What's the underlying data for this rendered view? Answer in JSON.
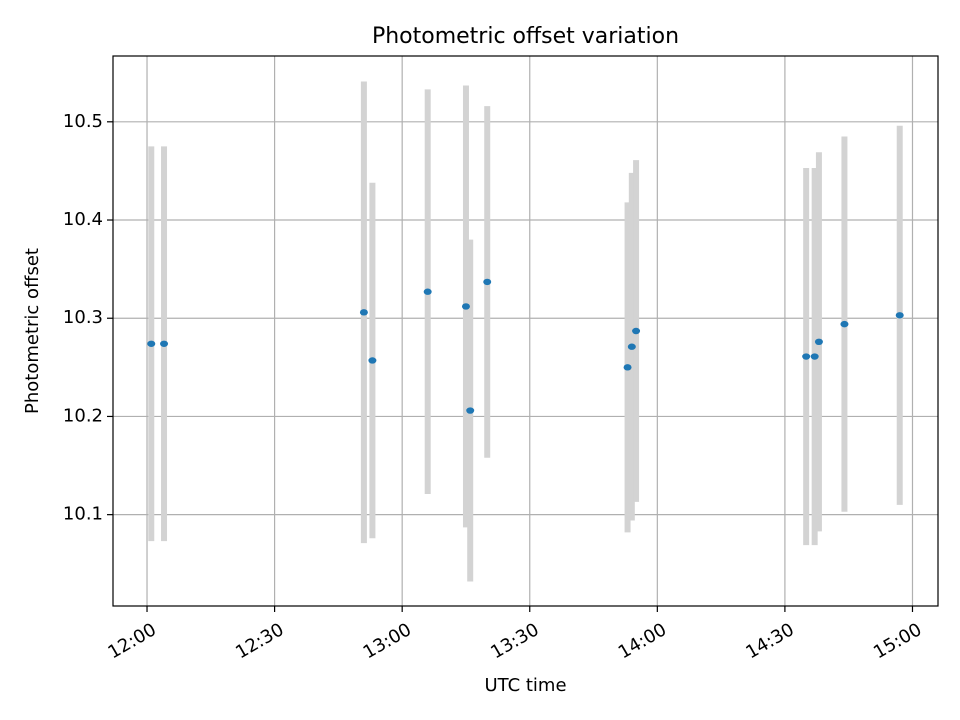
{
  "chart_data": {
    "type": "scatter",
    "title": "Photometric offset variation",
    "xlabel": "UTC time",
    "ylabel": "Photometric offset",
    "x_ticks": [
      "12:00",
      "12:30",
      "13:00",
      "13:30",
      "14:00",
      "14:30",
      "15:00"
    ],
    "y_ticks": [
      "10.1",
      "10.2",
      "10.3",
      "10.4",
      "10.5"
    ],
    "grid": true,
    "xlim": [
      "11:52",
      "15:06"
    ],
    "ylim": [
      10.007,
      10.567
    ],
    "series": [
      {
        "x": [
          "12:01",
          "12:04",
          "12:51",
          "12:53",
          "13:06",
          "13:15",
          "13:16",
          "13:20",
          "13:53",
          "13:54",
          "13:55",
          "14:35",
          "14:37",
          "14:38",
          "14:44",
          "14:57"
        ],
        "y": [
          10.274,
          10.274,
          10.306,
          10.257,
          10.327,
          10.312,
          10.206,
          10.337,
          10.25,
          10.271,
          10.287,
          10.261,
          10.261,
          10.276,
          10.294,
          10.303
        ],
        "yerr": [
          0.201,
          0.201,
          0.235,
          0.181,
          0.206,
          0.225,
          0.174,
          0.179,
          0.168,
          0.177,
          0.174,
          0.192,
          0.192,
          0.193,
          0.191,
          0.193
        ],
        "marker_color": "#1f77b4",
        "errorbar_color": "#d3d3d3"
      }
    ]
  }
}
